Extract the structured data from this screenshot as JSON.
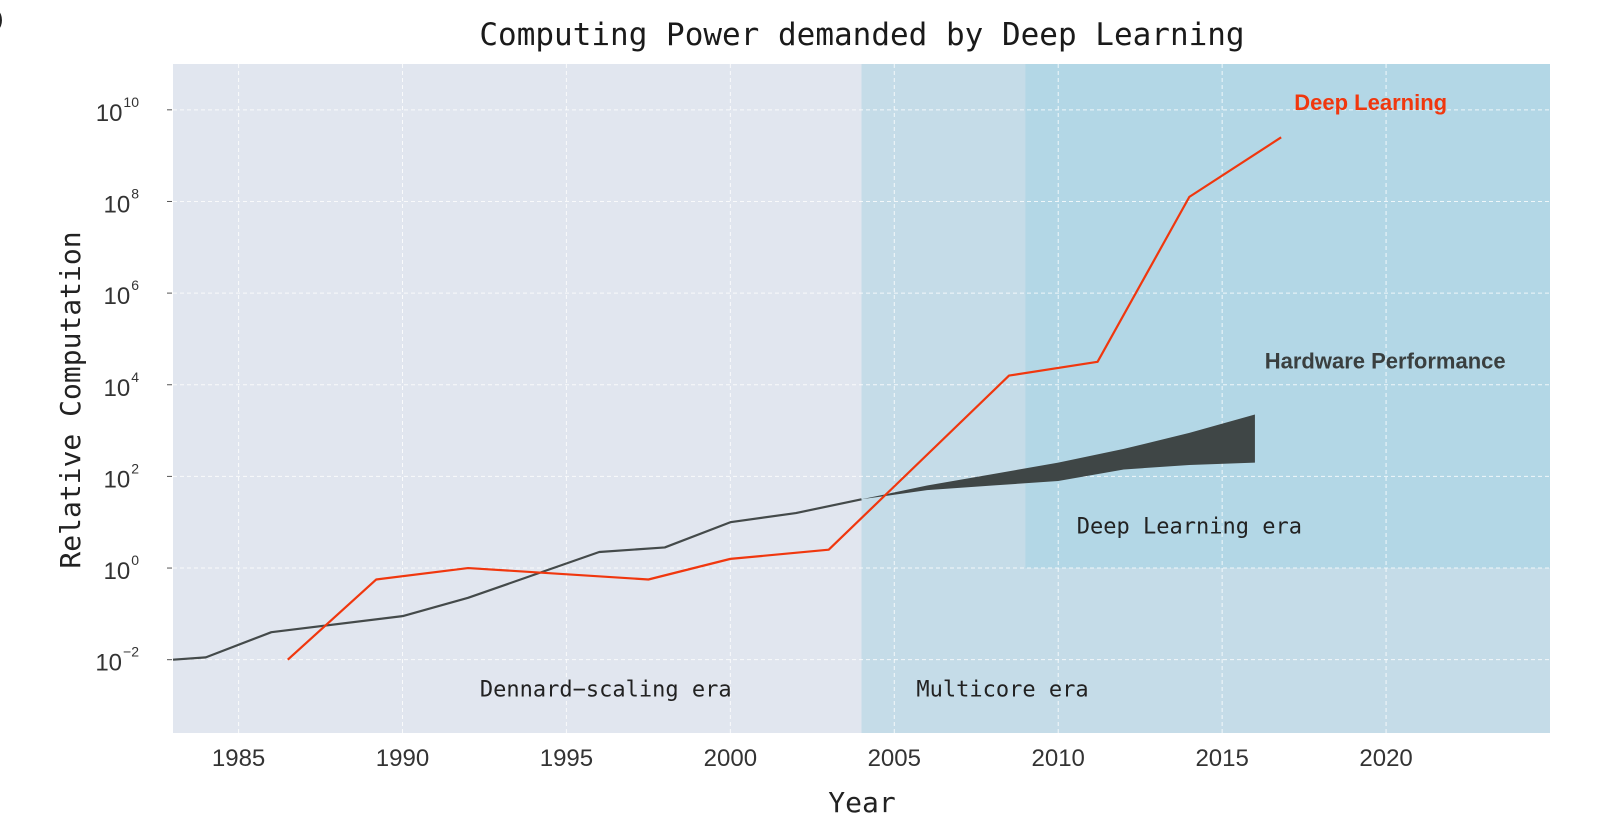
{
  "chart_data": {
    "type": "line",
    "title": "Computing Power demanded by Deep Learning",
    "xlabel": "Year",
    "ylabel": "Relative Computation",
    "y_scale": "log10",
    "xlim": [
      1983,
      2025
    ],
    "ylim_exponent": [
      -3.6,
      11.0
    ],
    "x_ticks": [
      1985,
      1990,
      1995,
      2000,
      2005,
      2010,
      2015,
      2020
    ],
    "y_tick_exponents": [
      -2,
      0,
      2,
      4,
      6,
      8,
      10
    ],
    "y_tick_base": "10",
    "panel_letter": ")",
    "grid": true,
    "colors": {
      "deep_learning": "#f0370e",
      "hardware": "#444a4a",
      "hardware_band": "#3f4646",
      "dennard_bg": "#e1e6ef",
      "multicore_bg": "#c5dce8",
      "dl_era_bg": "#b3d7e6",
      "grid": "#ffffff"
    },
    "regions": [
      {
        "name": "Dennard-scaling era",
        "label": "Dennard−scaling era",
        "x_range": [
          1983,
          2004
        ],
        "y_exponent_range": [
          -3.6,
          11.0
        ]
      },
      {
        "name": "Multicore era",
        "label": "Multicore era",
        "x_range": [
          2004,
          2025
        ],
        "y_exponent_range": [
          -3.6,
          11.0
        ]
      },
      {
        "name": "Deep Learning era",
        "label": "Deep Learning era",
        "x_range": [
          2009,
          2025
        ],
        "y_exponent_range": [
          0,
          11.0
        ]
      }
    ],
    "series": [
      {
        "name": "Deep Learning",
        "label": "Deep Learning",
        "x": [
          1986.5,
          1989.2,
          1992,
          1997.5,
          2000,
          2003,
          2008.5,
          2011.2,
          2014,
          2016.8
        ],
        "y_exponent": [
          -2.0,
          -0.25,
          0.0,
          -0.25,
          0.2,
          0.4,
          4.2,
          4.5,
          8.1,
          9.4
        ]
      },
      {
        "name": "Hardware Performance",
        "label": "Hardware Performance",
        "x": [
          1983,
          1984,
          1986,
          1990,
          1992,
          1996,
          1998,
          2000,
          2002,
          2004
        ],
        "y_exponent": [
          -2.0,
          -1.95,
          -1.4,
          -1.05,
          -0.65,
          0.35,
          0.45,
          1.0,
          1.2,
          1.5
        ]
      }
    ],
    "hardware_band": {
      "x": [
        2004,
        2006,
        2008,
        2010,
        2012,
        2014,
        2016
      ],
      "upper_exponent": [
        1.5,
        1.8,
        2.05,
        2.3,
        2.6,
        2.95,
        3.35
      ],
      "lower_exponent": [
        1.5,
        1.7,
        1.8,
        1.9,
        2.15,
        2.25,
        2.3
      ]
    }
  }
}
